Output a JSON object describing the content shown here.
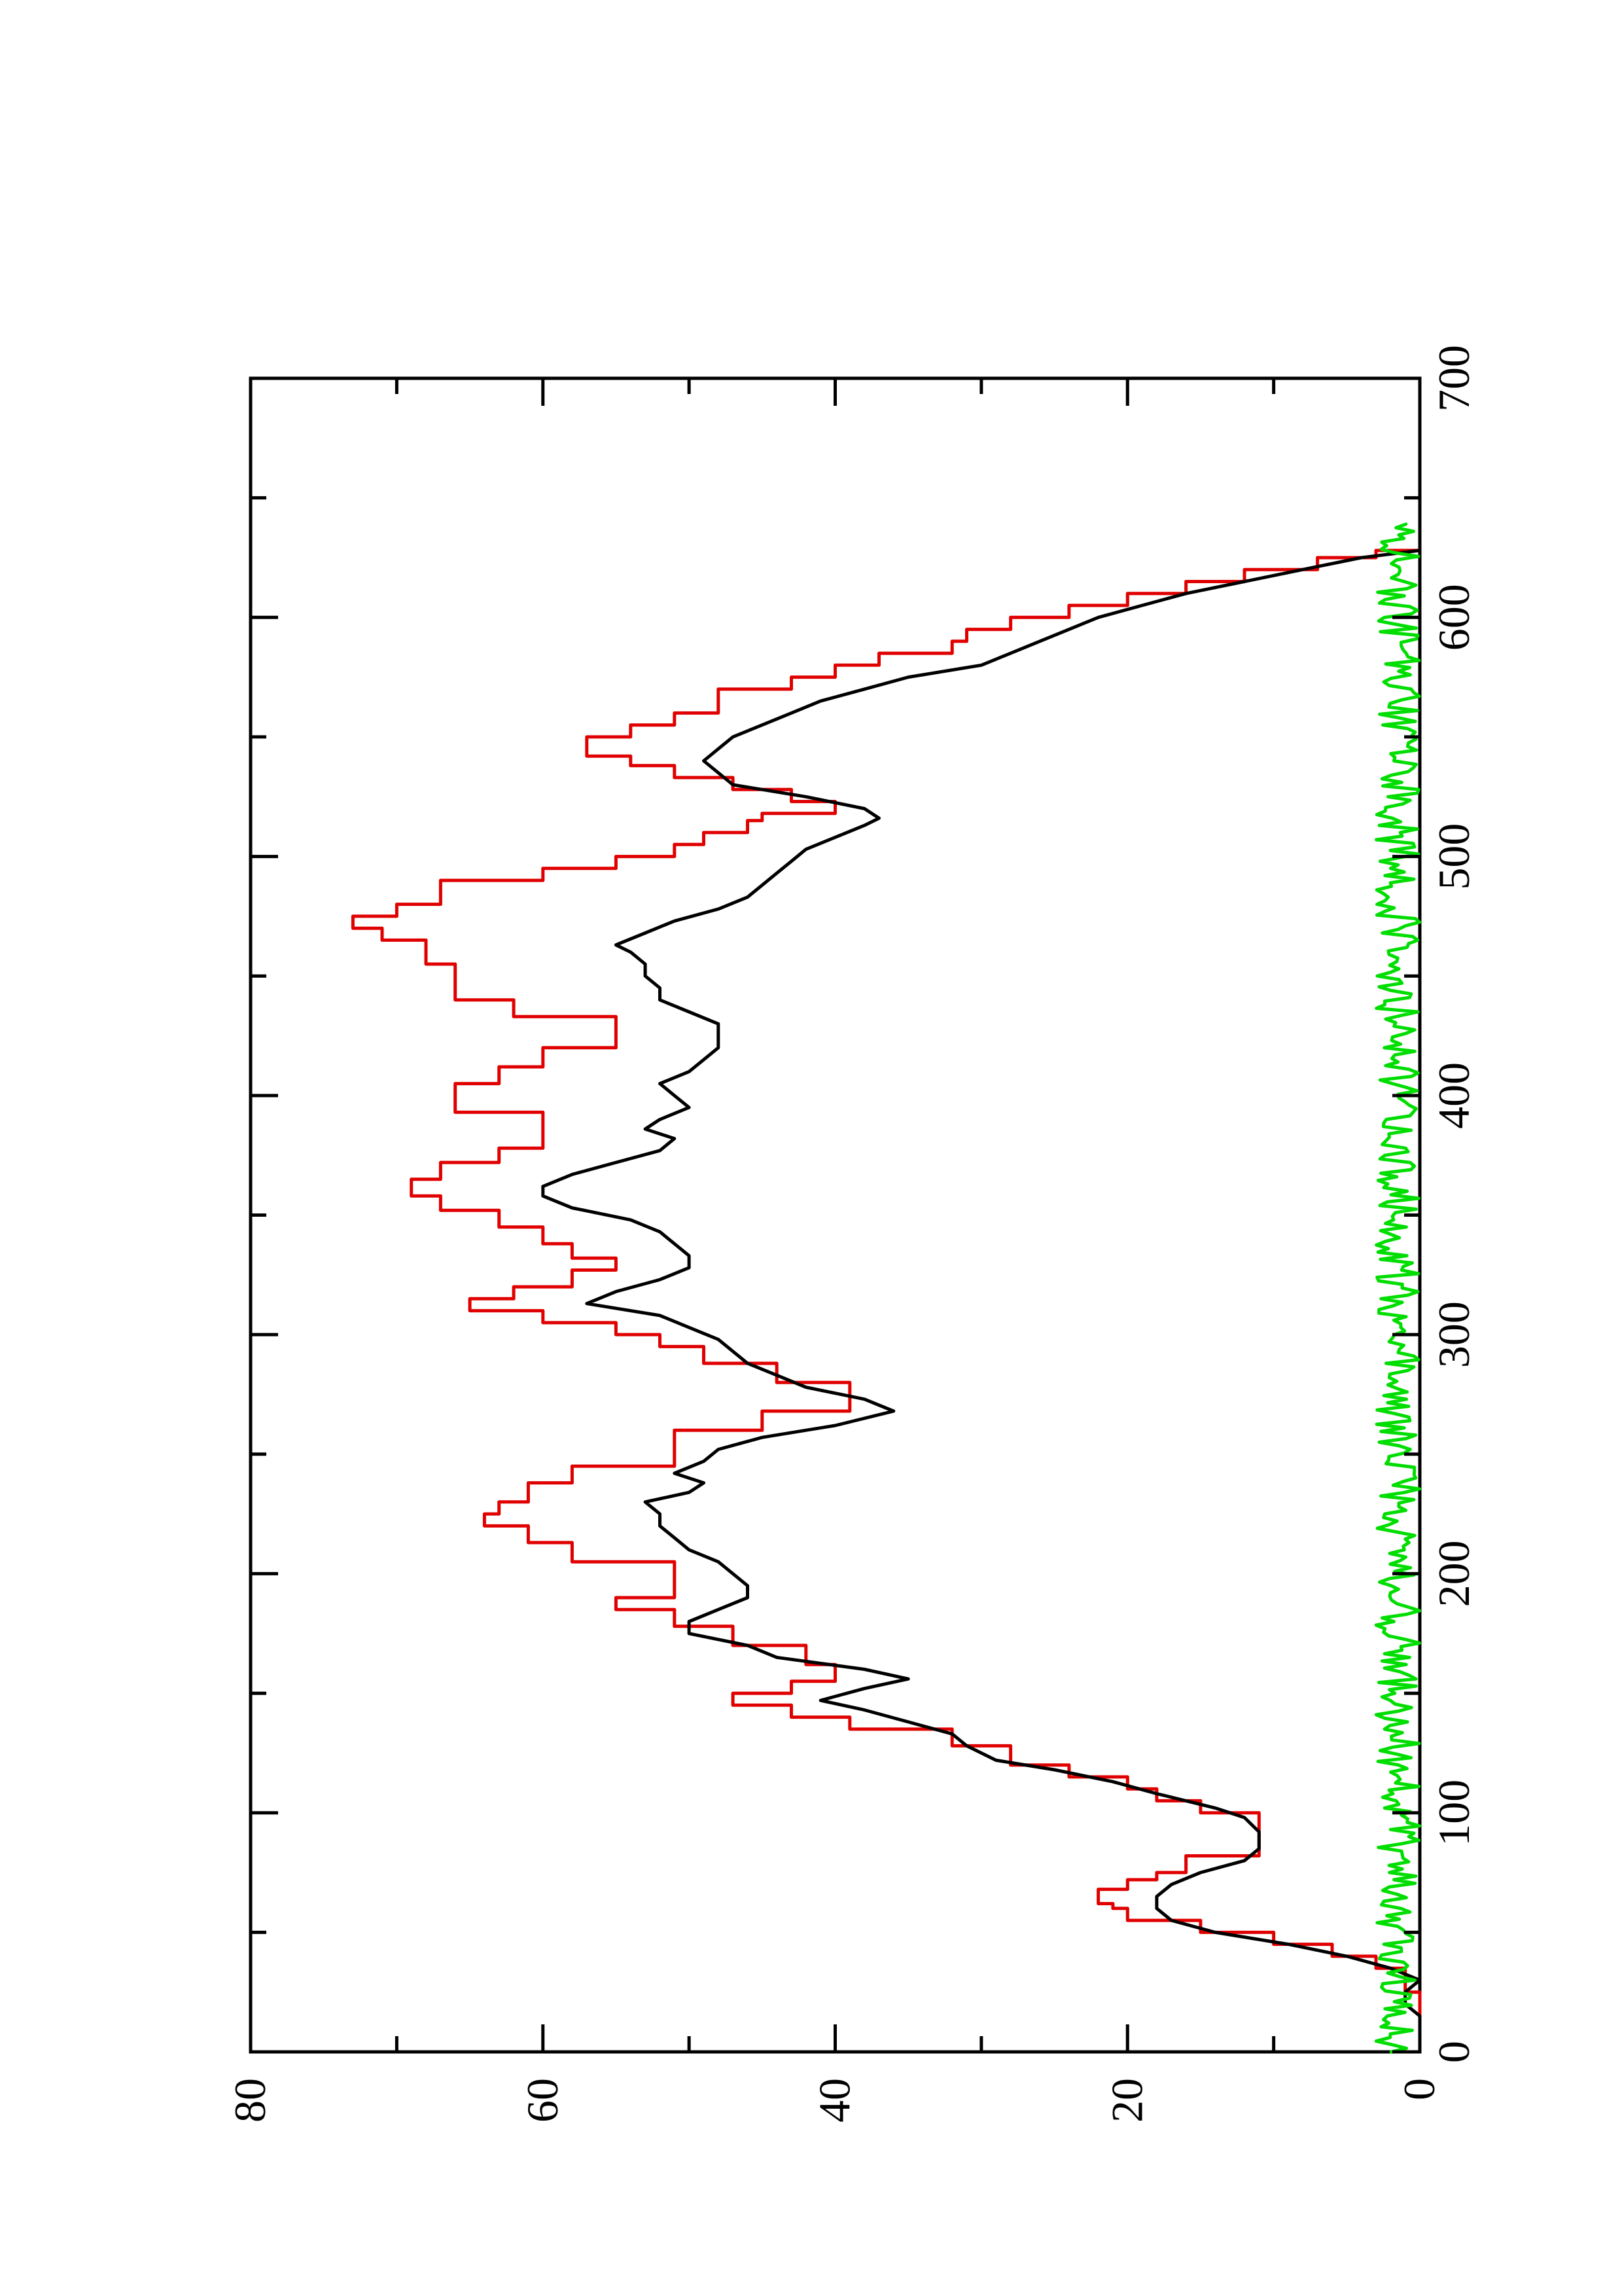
{
  "chart_data": {
    "type": "line",
    "orientation": "rotated-90-clockwise",
    "title": "",
    "xlabel": "",
    "ylabel": "",
    "xlim": [
      0,
      700
    ],
    "ylim": [
      0,
      80
    ],
    "x_ticks": [
      0,
      100,
      200,
      300,
      400,
      500,
      600,
      700
    ],
    "y_ticks": [
      0,
      20,
      40,
      60,
      80
    ],
    "x_tick_labels": [
      "0",
      "100",
      "200",
      "300",
      "400",
      "500",
      "600",
      "700"
    ],
    "y_tick_labels": [
      "0",
      "20",
      "40",
      "60",
      "80"
    ],
    "grid": false,
    "legend": "none",
    "series": [
      {
        "color": "#e00000",
        "style": "step",
        "points": [
          [
            0,
            0
          ],
          [
            20,
            0
          ],
          [
            25,
            1
          ],
          [
            35,
            3
          ],
          [
            40,
            6
          ],
          [
            45,
            10
          ],
          [
            50,
            15
          ],
          [
            55,
            20
          ],
          [
            60,
            21
          ],
          [
            62,
            22
          ],
          [
            68,
            20
          ],
          [
            72,
            18
          ],
          [
            75,
            16
          ],
          [
            82,
            11
          ],
          [
            86,
            11
          ],
          [
            95,
            11
          ],
          [
            100,
            15
          ],
          [
            105,
            18
          ],
          [
            110,
            20
          ],
          [
            115,
            24
          ],
          [
            120,
            28
          ],
          [
            128,
            32
          ],
          [
            135,
            39
          ],
          [
            140,
            43
          ],
          [
            145,
            47
          ],
          [
            150,
            43
          ],
          [
            155,
            40
          ],
          [
            162,
            42
          ],
          [
            170,
            47
          ],
          [
            178,
            51
          ],
          [
            185,
            55
          ],
          [
            190,
            51
          ],
          [
            197,
            51
          ],
          [
            205,
            58
          ],
          [
            213,
            61
          ],
          [
            220,
            64
          ],
          [
            225,
            63
          ],
          [
            230,
            61
          ],
          [
            238,
            58
          ],
          [
            245,
            51
          ],
          [
            252,
            51
          ],
          [
            260,
            45
          ],
          [
            268,
            39
          ],
          [
            275,
            39
          ],
          [
            280,
            44
          ],
          [
            288,
            49
          ],
          [
            295,
            52
          ],
          [
            300,
            55
          ],
          [
            305,
            60
          ],
          [
            310,
            65
          ],
          [
            315,
            62
          ],
          [
            320,
            58
          ],
          [
            327,
            55
          ],
          [
            332,
            58
          ],
          [
            338,
            60
          ],
          [
            345,
            63
          ],
          [
            352,
            67
          ],
          [
            358,
            69
          ],
          [
            365,
            67
          ],
          [
            372,
            63
          ],
          [
            378,
            60
          ],
          [
            385,
            60
          ],
          [
            393,
            66
          ],
          [
            400,
            66
          ],
          [
            405,
            63
          ],
          [
            412,
            60
          ],
          [
            420,
            55
          ],
          [
            425,
            55
          ],
          [
            433,
            62
          ],
          [
            440,
            66
          ],
          [
            450,
            66
          ],
          [
            455,
            68
          ],
          [
            465,
            71
          ],
          [
            470,
            73
          ],
          [
            475,
            70
          ],
          [
            480,
            67
          ],
          [
            490,
            60
          ],
          [
            495,
            55
          ],
          [
            500,
            51
          ],
          [
            505,
            49
          ],
          [
            510,
            46
          ],
          [
            515,
            45
          ],
          [
            518,
            40
          ],
          [
            523,
            43
          ],
          [
            528,
            47
          ],
          [
            533,
            51
          ],
          [
            538,
            54
          ],
          [
            542,
            57
          ],
          [
            550,
            54
          ],
          [
            555,
            51
          ],
          [
            560,
            48
          ],
          [
            570,
            43
          ],
          [
            575,
            40
          ],
          [
            580,
            37
          ],
          [
            585,
            32
          ],
          [
            590,
            31
          ],
          [
            595,
            28
          ],
          [
            600,
            24
          ],
          [
            605,
            20
          ],
          [
            610,
            16
          ],
          [
            615,
            12
          ],
          [
            620,
            7
          ],
          [
            625,
            3
          ],
          [
            628,
            0
          ]
        ]
      },
      {
        "color": "#000000",
        "style": "line",
        "points": [
          [
            0,
            0
          ],
          [
            15,
            0
          ],
          [
            20,
            1
          ],
          [
            25,
            1
          ],
          [
            30,
            0
          ],
          [
            35,
            2
          ],
          [
            40,
            5
          ],
          [
            45,
            9
          ],
          [
            50,
            14
          ],
          [
            55,
            17
          ],
          [
            60,
            18
          ],
          [
            65,
            18
          ],
          [
            70,
            17
          ],
          [
            75,
            15
          ],
          [
            80,
            12
          ],
          [
            85,
            11
          ],
          [
            92,
            11
          ],
          [
            98,
            12
          ],
          [
            102,
            14
          ],
          [
            108,
            18
          ],
          [
            113,
            21
          ],
          [
            118,
            25
          ],
          [
            122,
            29
          ],
          [
            128,
            31
          ],
          [
            133,
            32
          ],
          [
            138,
            35
          ],
          [
            143,
            38
          ],
          [
            147,
            41
          ],
          [
            152,
            38
          ],
          [
            156,
            35
          ],
          [
            160,
            38
          ],
          [
            165,
            44
          ],
          [
            170,
            46
          ],
          [
            175,
            50
          ],
          [
            180,
            50
          ],
          [
            185,
            48
          ],
          [
            190,
            46
          ],
          [
            195,
            46
          ],
          [
            200,
            47
          ],
          [
            205,
            48
          ],
          [
            210,
            50
          ],
          [
            215,
            51
          ],
          [
            220,
            52
          ],
          [
            225,
            52
          ],
          [
            230,
            53
          ],
          [
            234,
            50
          ],
          [
            238,
            49
          ],
          [
            242,
            51
          ],
          [
            247,
            49
          ],
          [
            252,
            48
          ],
          [
            257,
            45
          ],
          [
            262,
            40
          ],
          [
            268,
            36
          ],
          [
            273,
            38
          ],
          [
            278,
            42
          ],
          [
            283,
            44
          ],
          [
            288,
            46
          ],
          [
            293,
            47
          ],
          [
            298,
            48
          ],
          [
            303,
            50
          ],
          [
            308,
            52
          ],
          [
            313,
            57
          ],
          [
            318,
            55
          ],
          [
            323,
            52
          ],
          [
            328,
            50
          ],
          [
            333,
            50
          ],
          [
            338,
            51
          ],
          [
            343,
            52
          ],
          [
            348,
            54
          ],
          [
            353,
            58
          ],
          [
            358,
            60
          ],
          [
            362,
            60
          ],
          [
            367,
            58
          ],
          [
            372,
            55
          ],
          [
            377,
            52
          ],
          [
            382,
            51
          ],
          [
            386,
            53
          ],
          [
            390,
            52
          ],
          [
            395,
            50
          ],
          [
            400,
            51
          ],
          [
            405,
            52
          ],
          [
            410,
            50
          ],
          [
            415,
            49
          ],
          [
            420,
            48
          ],
          [
            425,
            48
          ],
          [
            430,
            48
          ],
          [
            435,
            50
          ],
          [
            440,
            52
          ],
          [
            445,
            52
          ],
          [
            450,
            53
          ],
          [
            455,
            53
          ],
          [
            460,
            54
          ],
          [
            463,
            55
          ],
          [
            468,
            53
          ],
          [
            473,
            51
          ],
          [
            478,
            48
          ],
          [
            483,
            46
          ],
          [
            488,
            45
          ],
          [
            493,
            44
          ],
          [
            498,
            43
          ],
          [
            503,
            42
          ],
          [
            508,
            40
          ],
          [
            513,
            38
          ],
          [
            516,
            37
          ],
          [
            520,
            38
          ],
          [
            525,
            42
          ],
          [
            530,
            47
          ],
          [
            535,
            48
          ],
          [
            540,
            49
          ],
          [
            545,
            48
          ],
          [
            550,
            47
          ],
          [
            555,
            45
          ],
          [
            560,
            43
          ],
          [
            565,
            41
          ],
          [
            570,
            38
          ],
          [
            575,
            35
          ],
          [
            580,
            30
          ],
          [
            585,
            28
          ],
          [
            590,
            26
          ],
          [
            595,
            24
          ],
          [
            600,
            22
          ],
          [
            605,
            19
          ],
          [
            610,
            16
          ],
          [
            615,
            12
          ],
          [
            620,
            8
          ],
          [
            625,
            4
          ],
          [
            628,
            0
          ]
        ]
      },
      {
        "color": "#00dd00",
        "style": "noise",
        "x_range": [
          0,
          640
        ],
        "y_range": [
          0,
          3
        ]
      }
    ]
  }
}
